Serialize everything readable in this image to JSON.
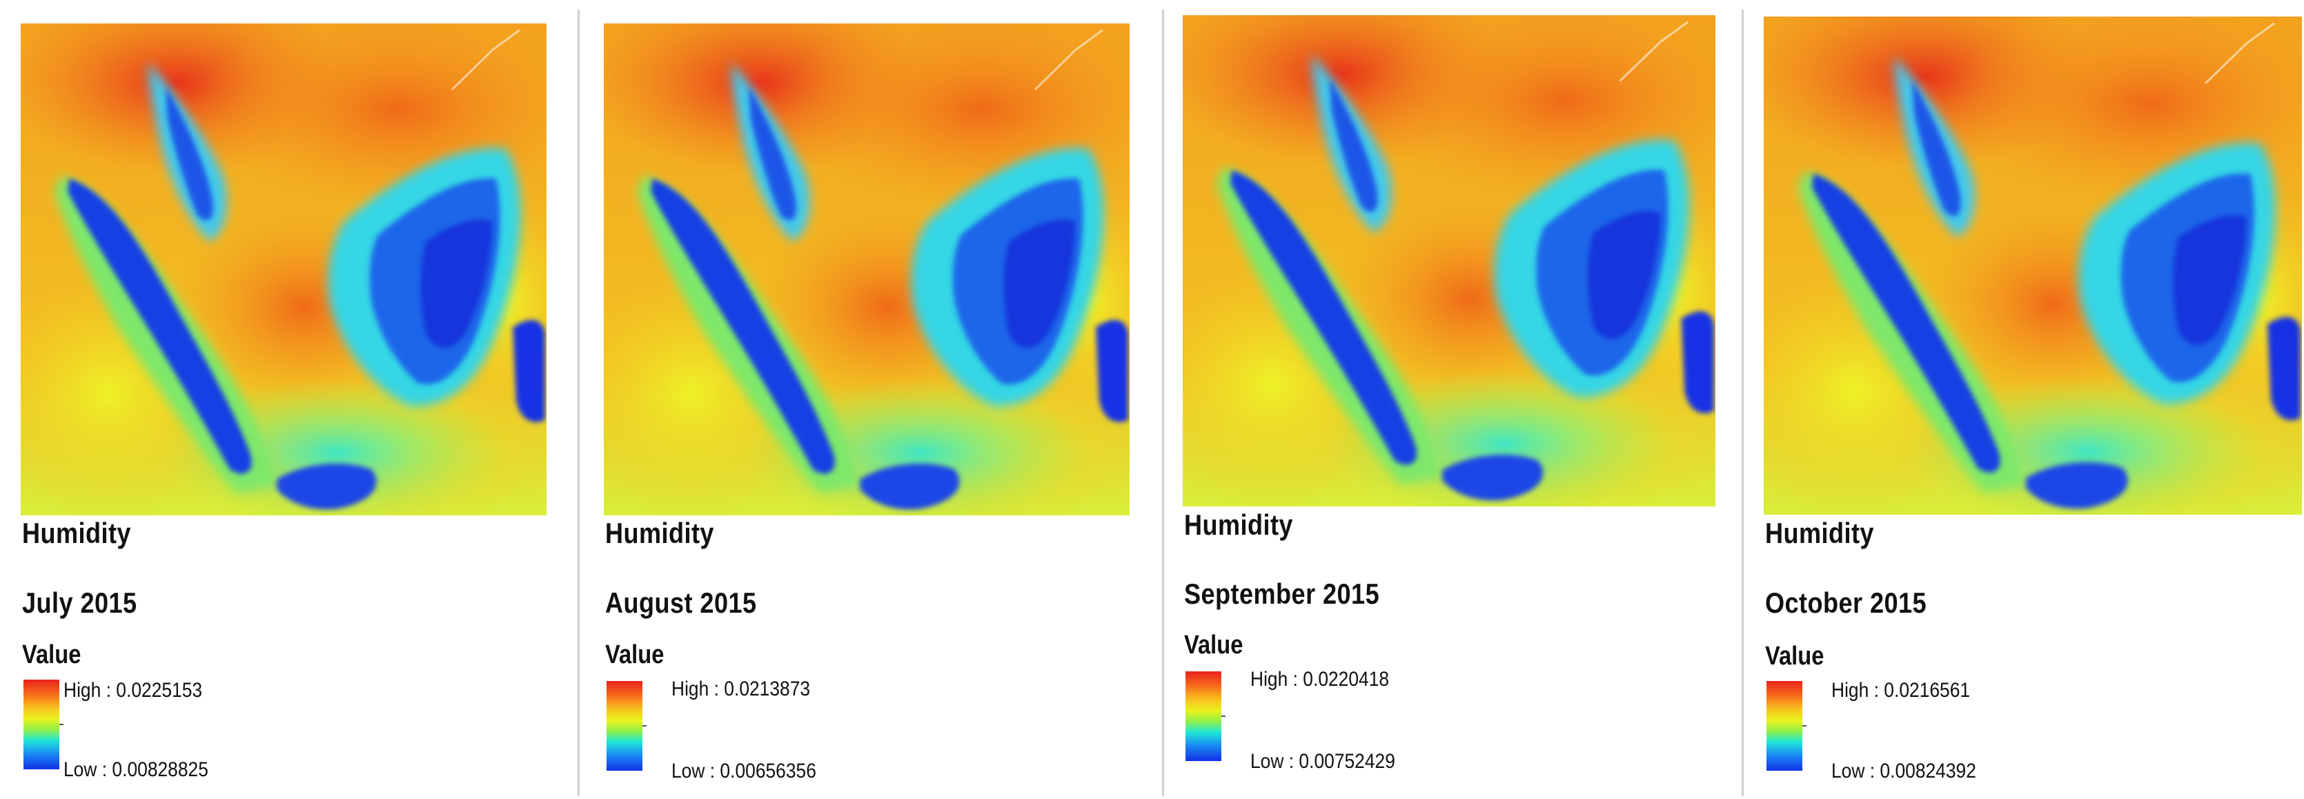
{
  "figure": {
    "panels": [
      {
        "title": "Humidity",
        "period": "July 2015",
        "legend_title": "Value",
        "high_label": "High : 0.0225153",
        "low_label": "Low : 0.00828825",
        "high_value": 0.0225153,
        "low_value": 0.00828825
      },
      {
        "title": "Humidity",
        "period": "August 2015",
        "legend_title": "Value",
        "high_label": "High : 0.0213873",
        "low_label": "Low : 0.00656356",
        "high_value": 0.0213873,
        "low_value": 0.00656356
      },
      {
        "title": "Humidity",
        "period": "September 2015",
        "legend_title": "Value",
        "high_label": "High : 0.0220418",
        "low_label": "Low : 0.00752429",
        "high_value": 0.0220418,
        "low_value": 0.00752429
      },
      {
        "title": "Humidity",
        "period": "October 2015",
        "legend_title": "Value",
        "high_label": "High : 0.0216561",
        "low_label": "Low : 0.00824392",
        "high_value": 0.0216561,
        "low_value": 0.00824392
      }
    ],
    "colors": {
      "high": "#e8231c",
      "mid_orange": "#f7a21e",
      "mid_yellow": "#eaf21e",
      "mid_cyan": "#1ee8d6",
      "low": "#1230e8"
    }
  }
}
